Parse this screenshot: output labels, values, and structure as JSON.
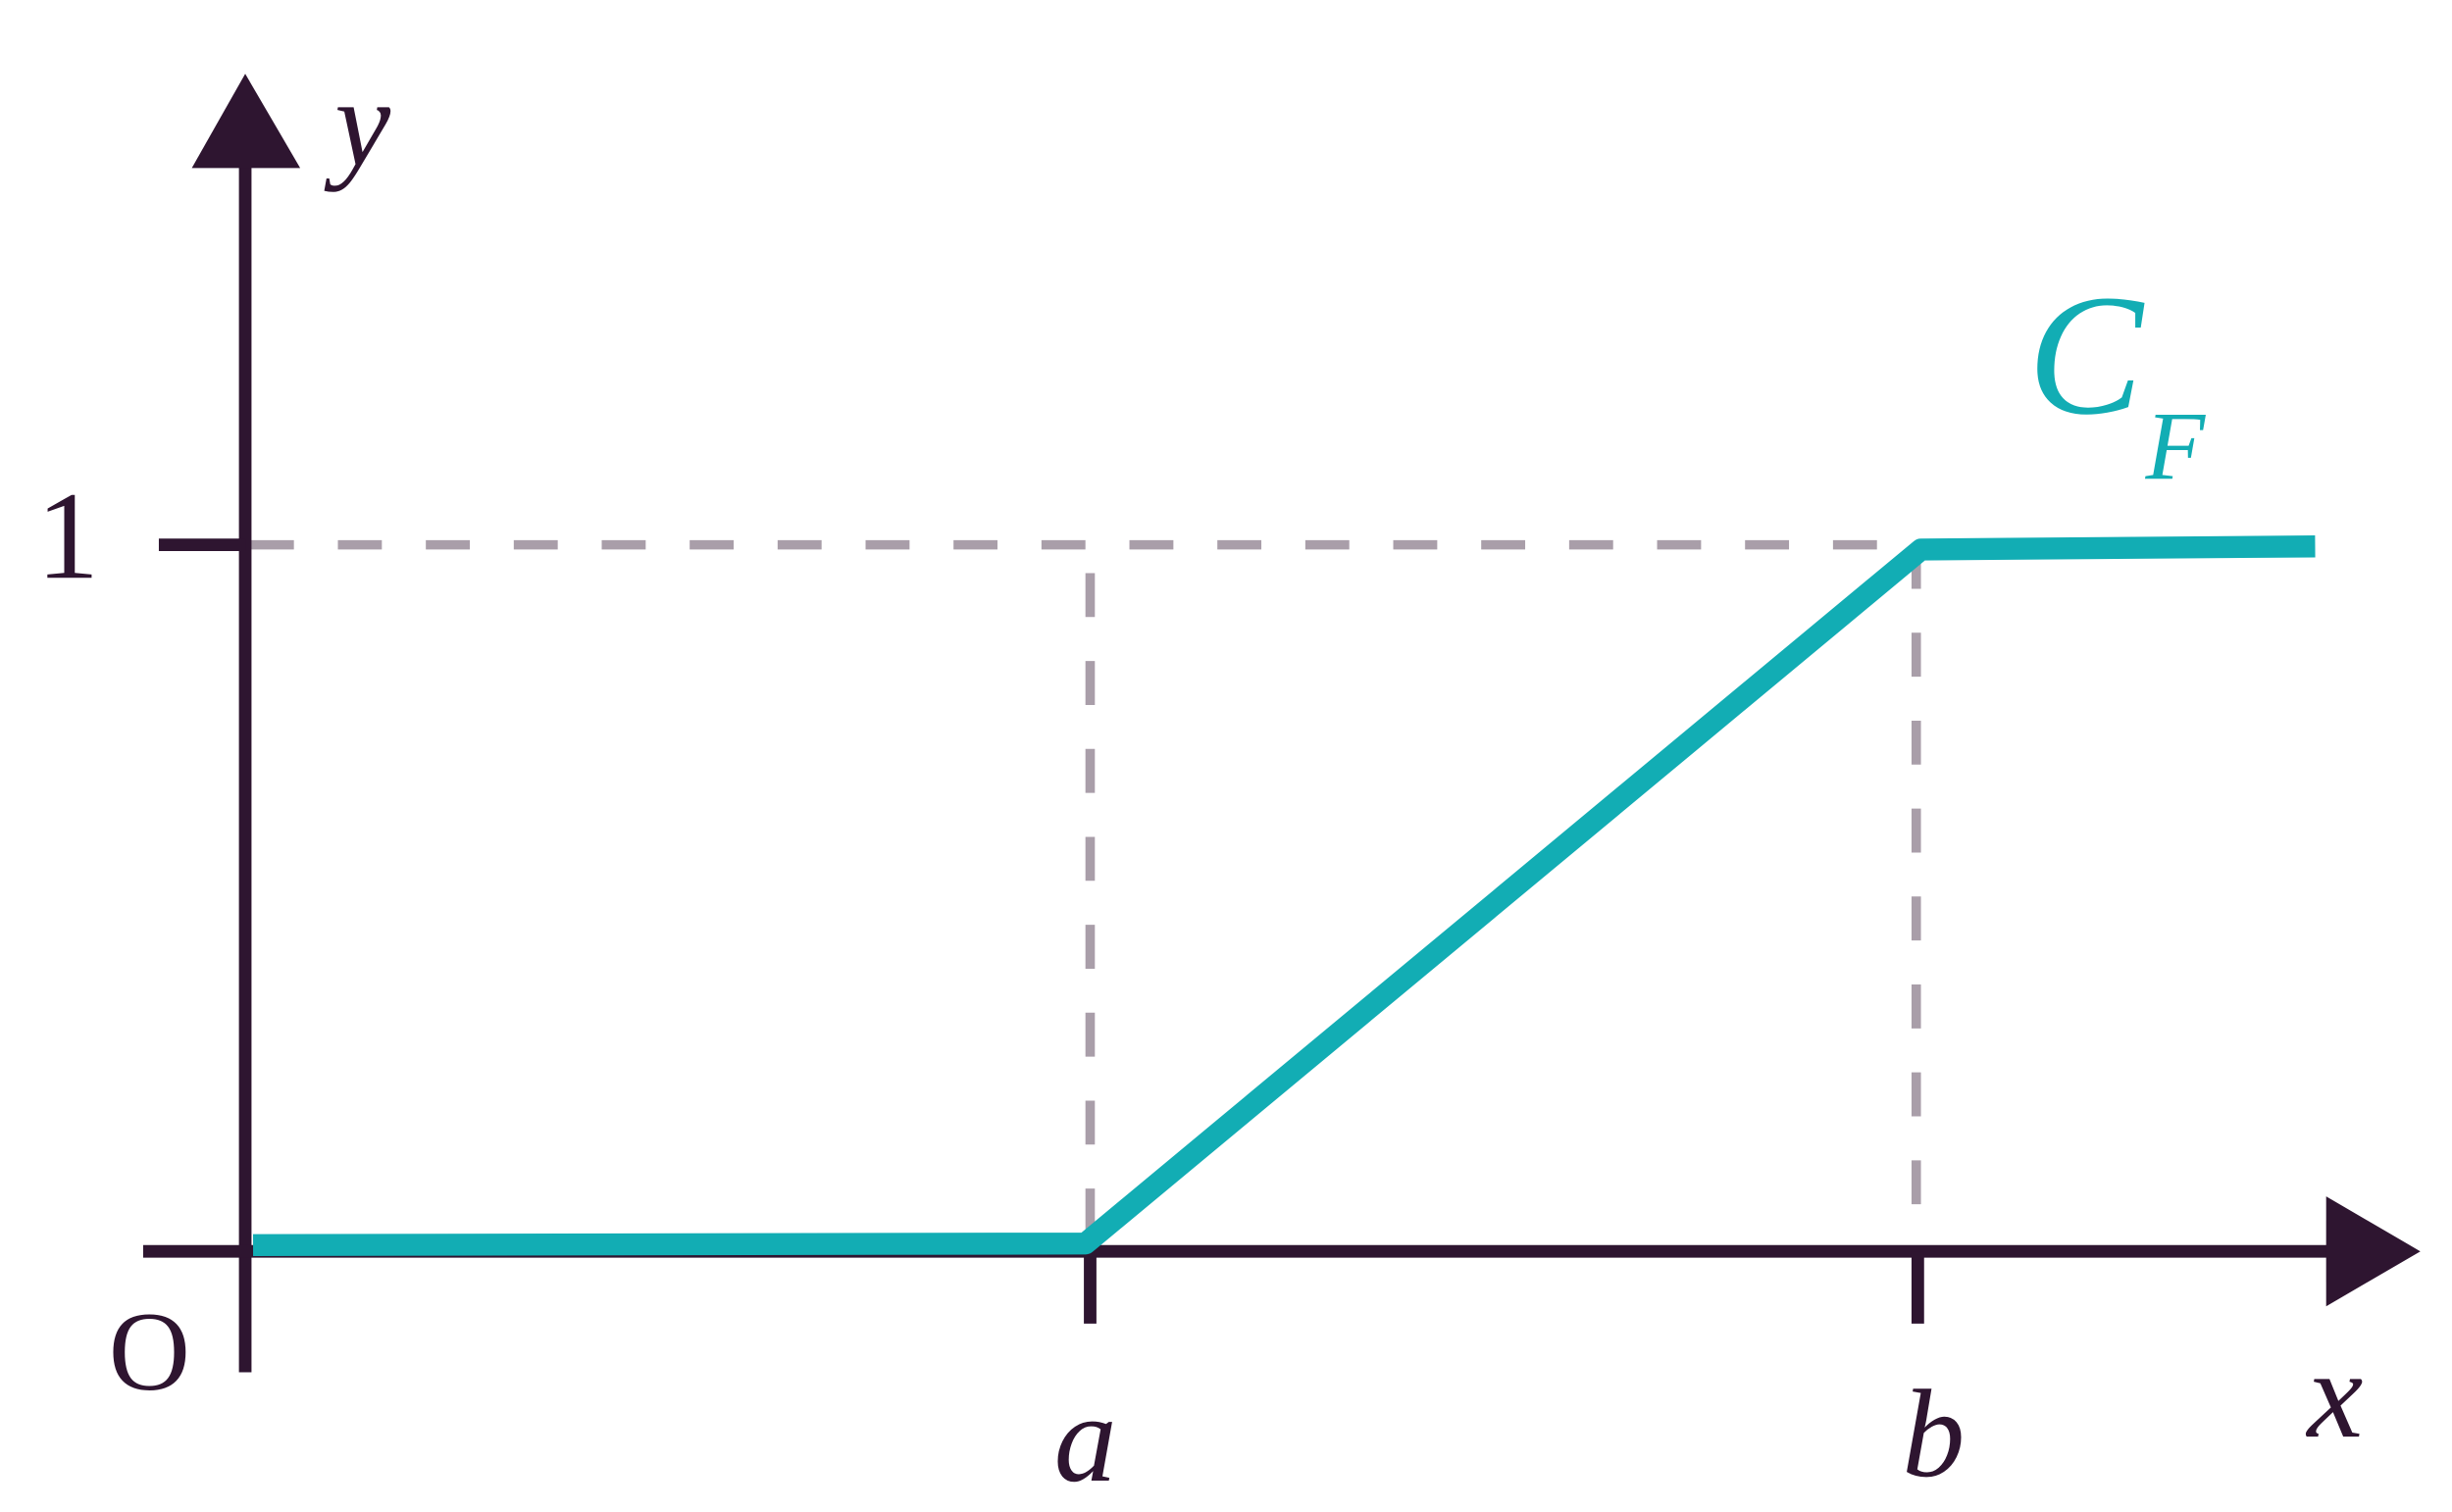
{
  "axes": {
    "x_label": "x",
    "y_label": "y",
    "origin": "O"
  },
  "ticks": {
    "x": [
      "a",
      "b"
    ],
    "y": [
      "1"
    ]
  },
  "curve": {
    "label": "C",
    "subscript": "F"
  }
}
